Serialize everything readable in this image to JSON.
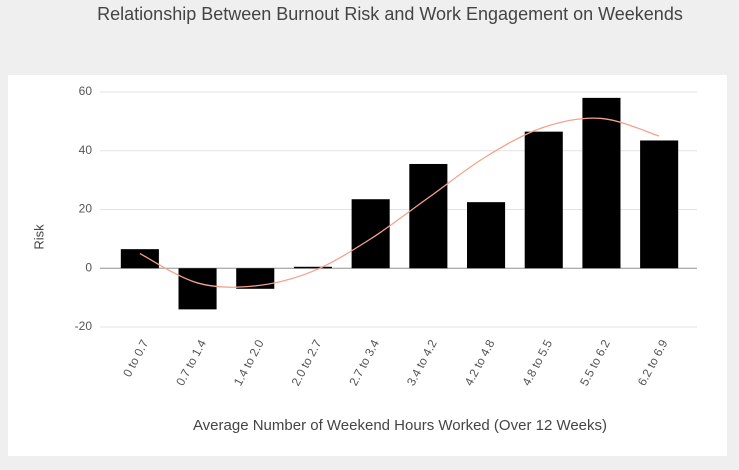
{
  "chart_data": {
    "type": "bar",
    "title": "Relationship Between Burnout Risk and Work Engagement on Weekends",
    "x_label": "Average Number of Weekend Hours Worked (Over 12 Weeks)",
    "y_label": "Risk",
    "categories": [
      "0 to 0.7",
      "0.7 to 1.4",
      "1.4 to 2.0",
      "2.0 to 2.7",
      "2.7 to 3.4",
      "3.4 to 4.2",
      "4.2 to 4.8",
      "4.8 to 5.5",
      "5.5 to 6.2",
      "6.2 to 6.9"
    ],
    "values": [
      6.5,
      -14,
      -7,
      0.5,
      23.5,
      35.5,
      22.5,
      46.5,
      58,
      43.5
    ],
    "color": "#000000",
    "trendline": {
      "color": "#f4a28c",
      "values": [
        5,
        -5,
        -6,
        -1,
        10,
        24,
        38,
        48,
        51,
        45
      ]
    },
    "ylim": [
      -20,
      60
    ],
    "yticks": [
      -20,
      0,
      20,
      40,
      60
    ],
    "grid": true
  }
}
